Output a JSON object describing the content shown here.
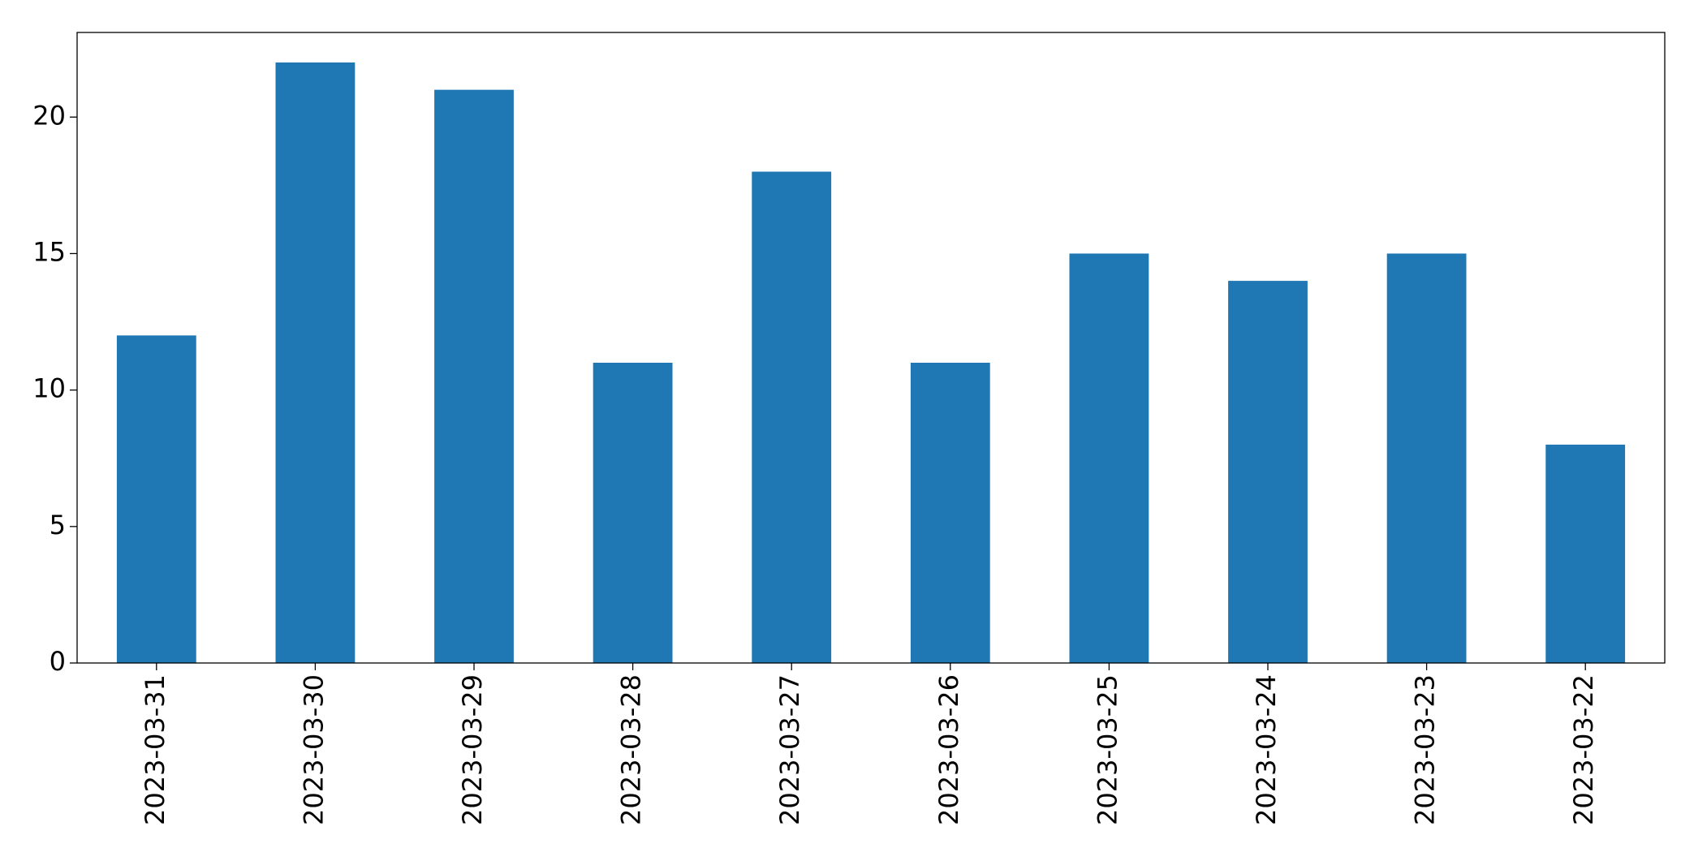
{
  "chart_data": {
    "type": "bar",
    "categories": [
      "2023-03-31",
      "2023-03-30",
      "2023-03-29",
      "2023-03-28",
      "2023-03-27",
      "2023-03-26",
      "2023-03-25",
      "2023-03-24",
      "2023-03-23",
      "2023-03-22"
    ],
    "values": [
      12,
      22,
      21,
      11,
      18,
      11,
      15,
      14,
      15,
      8
    ],
    "color": "#1f77b4",
    "ylim": [
      0,
      23.1
    ],
    "yticks": [
      0,
      5,
      10,
      15,
      20
    ],
    "grid": false
  }
}
